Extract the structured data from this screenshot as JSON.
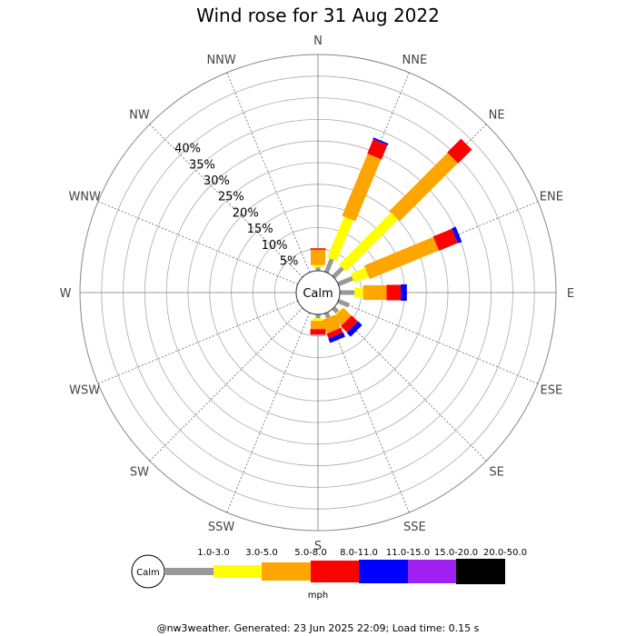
{
  "chart_data": {
    "type": "windrose",
    "title": "Wind rose for 31 Aug 2022",
    "directions": [
      "N",
      "NNE",
      "NE",
      "ENE",
      "E",
      "ESE",
      "SE",
      "SSE",
      "S",
      "SSW",
      "SW",
      "WSW",
      "W",
      "WNW",
      "NW",
      "NNW"
    ],
    "radial_ticks": [
      "5%",
      "10%",
      "15%",
      "20%",
      "25%",
      "30%",
      "35%",
      "40%"
    ],
    "radial_max_percent": 50,
    "calm_label": "Calm",
    "speed_bins": [
      {
        "label": "1.0-3.0",
        "color": "#999999"
      },
      {
        "label": "3.0-5.0",
        "color": "#ffff00"
      },
      {
        "label": "5.0-8.0",
        "color": "#ffa500"
      },
      {
        "label": "8.0-11.0",
        "color": "#ff0000"
      },
      {
        "label": "11.0-15.0",
        "color": "#0000ff"
      },
      {
        "label": "15.0-20.0",
        "color": "#a020f0"
      },
      {
        "label": "20.0-50.0",
        "color": "#000000"
      }
    ],
    "units": "mph",
    "cumulative_percent": {
      "N": [
        0.8,
        1.3,
        4.9,
        5.2,
        5.2,
        5.2,
        5.2
      ],
      "NNE": [
        3.3,
        13.5,
        29.0,
        32.6,
        33.0,
        33.0,
        33.0
      ],
      "NE": [
        3.0,
        20.0,
        39.0,
        43.5,
        43.5,
        43.5,
        43.5
      ],
      "ENE": [
        3.6,
        7.2,
        24.5,
        29.2,
        30.2,
        30.2,
        30.2
      ],
      "E": [
        3.4,
        5.4,
        10.8,
        14.1,
        15.5,
        15.5,
        15.5
      ],
      "ESE": [
        2.7,
        2.7,
        2.7,
        2.7,
        2.7,
        2.7,
        2.7
      ],
      "SE": [
        1.3,
        1.6,
        4.2,
        6.2,
        7.5,
        7.5,
        7.5
      ],
      "SSE": [
        1.2,
        1.2,
        4.5,
        5.7,
        6.8,
        6.8,
        6.8
      ],
      "S": [
        0.9,
        1.5,
        3.4,
        4.7,
        4.7,
        4.7,
        4.7
      ],
      "SSW": [
        0,
        0,
        0,
        0,
        0,
        0,
        0
      ],
      "SW": [
        0,
        0,
        0,
        0,
        0,
        0,
        0
      ],
      "WSW": [
        0,
        0,
        0,
        0,
        0,
        0,
        0
      ],
      "W": [
        0,
        0,
        0,
        0,
        0,
        0,
        0
      ],
      "WNW": [
        0,
        0,
        0,
        0,
        0,
        0,
        0
      ],
      "NW": [
        0,
        0,
        0,
        0,
        0,
        0,
        0
      ],
      "NNW": [
        0,
        0,
        0,
        0,
        0,
        0,
        0
      ]
    }
  },
  "footer": "@nw3weather. Generated: 23 Jun 2025 22:09; Load time: 0.15 s"
}
